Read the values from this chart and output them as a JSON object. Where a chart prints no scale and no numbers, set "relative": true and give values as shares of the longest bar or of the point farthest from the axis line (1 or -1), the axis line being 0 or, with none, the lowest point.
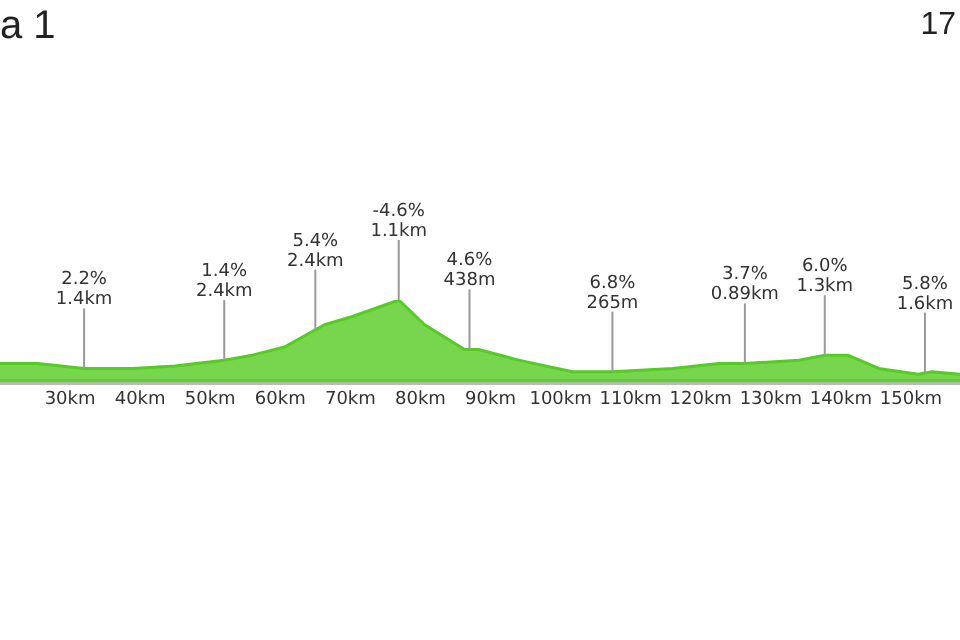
{
  "chart_data": {
    "type": "area",
    "title": "a 1",
    "relative": true,
    "x": [
      20,
      25.4,
      32,
      38.9,
      45,
      52,
      56,
      60.6,
      66.3,
      70.3,
      76.9,
      80.6,
      86.3,
      88.3,
      94,
      101.7,
      107.4,
      116,
      122.6,
      126.3,
      134,
      137.7,
      141,
      145.4,
      151,
      153,
      157
    ],
    "series": [
      {
        "color": "#55cc22",
        "values": [
          0.23,
          0.23,
          0.17,
          0.17,
          0.2,
          0.27,
          0.33,
          0.43,
          0.7,
          0.8,
          1,
          0.7,
          0.4,
          0.4,
          0.27,
          0.13,
          0.13,
          0.17,
          0.23,
          0.23,
          0.27,
          0.33,
          0.33,
          0.17,
          0.1,
          0.13,
          0.1
        ]
      }
    ],
    "xlim": [
      20,
      157
    ],
    "xticks": [
      {
        "value": 30,
        "label": "30km"
      },
      {
        "value": 40,
        "label": "40km"
      },
      {
        "value": 50,
        "label": "50km"
      },
      {
        "value": 60,
        "label": "60km"
      },
      {
        "value": 70,
        "label": "70km"
      },
      {
        "value": 80,
        "label": "80km"
      },
      {
        "value": 90,
        "label": "90km"
      },
      {
        "value": 100,
        "label": "100km"
      },
      {
        "value": 110,
        "label": "110km"
      },
      {
        "value": 120,
        "label": "120km"
      },
      {
        "value": 130,
        "label": "130km"
      },
      {
        "value": 140,
        "label": "140km"
      },
      {
        "value": 150,
        "label": "150km"
      }
    ],
    "grid": false,
    "legend": false,
    "marker": "none",
    "annotations": [
      "17",
      {
        "text": "2.2%\n1.4km",
        "x": 32,
        "y": 0.17
      },
      {
        "text": "1.4%\n2.4km",
        "x": 52,
        "y": 0.27
      },
      {
        "text": "5.4%\n2.4km",
        "x": 65,
        "y": 0.64
      },
      {
        "text": "-4.6%\n1.1km",
        "x": 76.9,
        "y": 1
      },
      {
        "text": "4.6%\n438m",
        "x": 87,
        "y": 0.4
      },
      {
        "text": "6.8%\n265m",
        "x": 107.4,
        "y": 0.13
      },
      {
        "text": "3.7%\n0.89km",
        "x": 126.3,
        "y": 0.23
      },
      {
        "text": "6.0%\n1.3km",
        "x": 137.7,
        "y": 0.33
      },
      {
        "text": "5.8%\n1.6km",
        "x": 152,
        "y": 0.12
      }
    ]
  }
}
